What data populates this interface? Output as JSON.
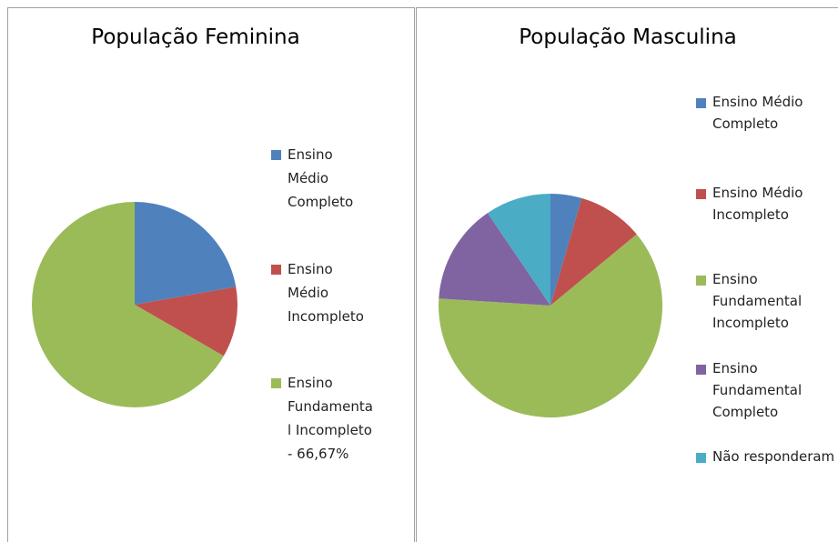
{
  "chart_data": [
    {
      "type": "pie",
      "title": "População Feminina",
      "categories": [
        "Ensino Médio Completo",
        "Ensino Médio Incompleto",
        "Ensino Fundamental Incompleto - 66,67%"
      ],
      "values": [
        22.22,
        11.11,
        66.67
      ],
      "colors": [
        "#4f81bd",
        "#c0504d",
        "#9bbb59"
      ]
    },
    {
      "type": "pie",
      "title": "População Masculina",
      "categories": [
        "Ensino Médio Completo",
        "Ensino Médio Incompleto",
        "Ensino Fundamental Incompleto",
        "Ensino Fundamental Completo",
        "Não responderam"
      ],
      "values": [
        4.5,
        9.5,
        62,
        14.5,
        9.5
      ],
      "colors": [
        "#4f81bd",
        "#c0504d",
        "#9bbb59",
        "#8064a2",
        "#4bacc6"
      ]
    }
  ]
}
